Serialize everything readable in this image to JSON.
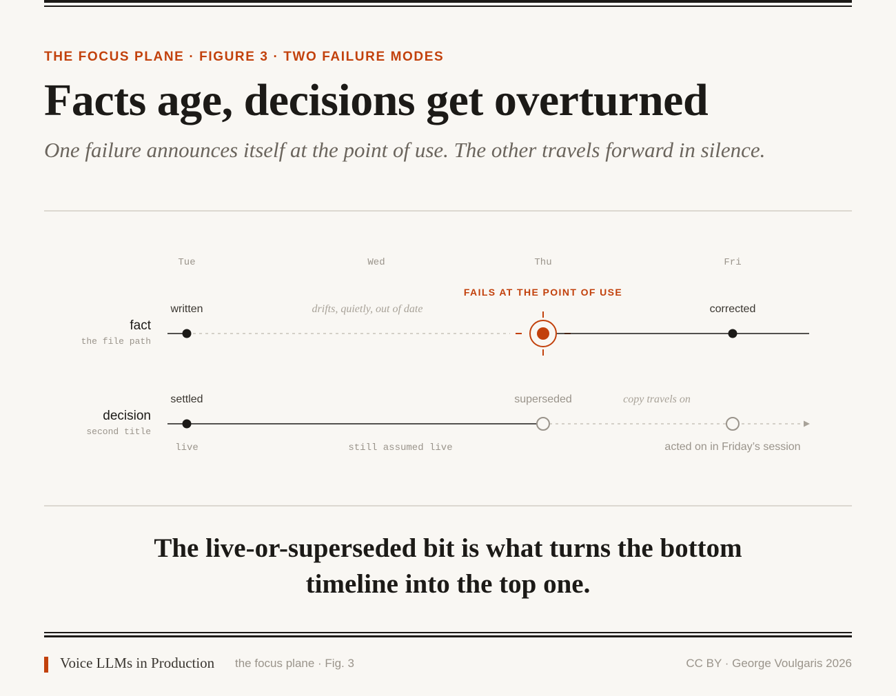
{
  "header": {
    "kicker": "THE FOCUS PLANE · FIGURE 3 · TWO FAILURE MODES",
    "title": "Facts age, decisions get overturned",
    "subtitle": "One failure announces itself at the point of use. The other travels forward in silence."
  },
  "diagram": {
    "days": [
      "Tue",
      "Wed",
      "Thu",
      "Fri"
    ],
    "fact": {
      "label": "fact",
      "sublabel": "the file path",
      "written": "written",
      "drift": "drifts, quietly, out of date",
      "fail": "FAILS AT THE POINT OF USE",
      "corrected": "corrected"
    },
    "decision": {
      "label": "decision",
      "sublabel": "second title",
      "settled": "settled",
      "superseded": "superseded",
      "copy": "copy travels on",
      "live": "live",
      "assumed": "still assumed live",
      "acted": "acted on in Friday’s session"
    },
    "colors": {
      "accent": "#c2410c",
      "ink": "#1c1a17",
      "muted": "#9a948b"
    }
  },
  "takeaway": {
    "line1": "The live-or-superseded bit is what turns the bottom",
    "line2": "timeline into the top one."
  },
  "footer": {
    "book": "Voice LLMs in Production",
    "section": "the focus plane · Fig. 3",
    "credit": "CC BY · George Voulgaris 2026"
  }
}
